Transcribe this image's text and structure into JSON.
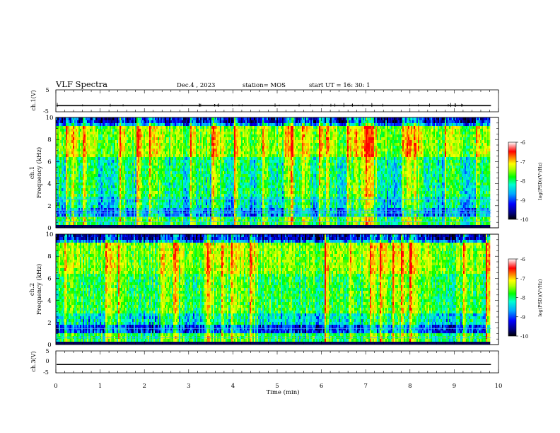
{
  "header": {
    "title": "VLF Spectra",
    "date": "Dec.4 , 2023",
    "station": "station= MOS",
    "start_ut": "start UT = 16: 30: 1"
  },
  "chart_data": [
    {
      "type": "line",
      "panel": "ch1-voltage",
      "ylabel": "ch.1(V)",
      "ylim": [
        -5,
        5
      ],
      "y_ticks": [
        "5",
        "-5"
      ],
      "x": [
        0,
        10
      ],
      "series": [
        {
          "values": [
            -2.2,
            -2.2
          ]
        }
      ]
    },
    {
      "type": "heatmap",
      "panel": "ch1-spectrogram",
      "ylabel": [
        "ch.1",
        "Frequency (kHz)"
      ],
      "ylim": [
        0,
        10
      ],
      "y_ticks": [
        "0",
        "2",
        "4",
        "6",
        "8",
        "10"
      ],
      "xlim": [
        0,
        9.83
      ],
      "colorbar": {
        "label": "log(PSD)(V²/Hz)",
        "range": [
          -10,
          -6
        ],
        "ticks": [
          "-6",
          "-7",
          "-8",
          "-9",
          "-10"
        ]
      }
    },
    {
      "type": "heatmap",
      "panel": "ch2-spectrogram",
      "ylabel": [
        "ch.2",
        "Frequency (kHz)"
      ],
      "ylim": [
        0,
        10
      ],
      "y_ticks": [
        "0",
        "2",
        "4",
        "6",
        "8",
        "10"
      ],
      "xlim": [
        0,
        9.83
      ],
      "colorbar": {
        "label": "log(PSD)(V²/Hz)",
        "range": [
          -10,
          -6
        ],
        "ticks": [
          "-6",
          "-7",
          "-8",
          "-9",
          "-10"
        ]
      }
    },
    {
      "type": "line",
      "panel": "ch3-voltage",
      "ylabel": "ch.3(V)",
      "ylim": [
        -5,
        5
      ],
      "y_ticks": [
        "5",
        "0",
        "-5"
      ],
      "x": [
        0,
        10
      ],
      "series": [
        {
          "values": [
            -1.2,
            -1.2
          ]
        }
      ]
    }
  ],
  "x_axis": {
    "label": "Time (min)",
    "ticks": [
      "0",
      "1",
      "2",
      "3",
      "4",
      "5",
      "6",
      "7",
      "8",
      "9",
      "10"
    ],
    "range": [
      0,
      10
    ]
  }
}
